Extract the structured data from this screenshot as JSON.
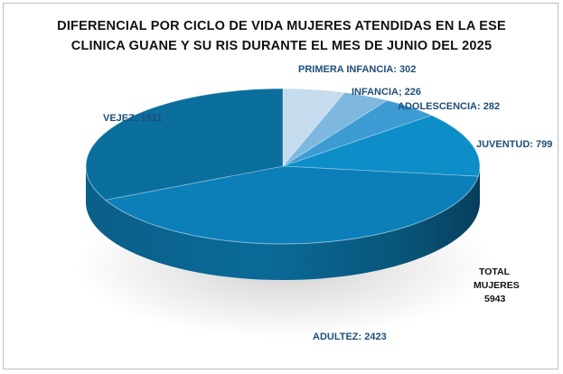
{
  "chart_data": {
    "type": "pie",
    "title_lines": [
      "DIFERENCIAL POR CICLO DE VIDA MUJERES ATENDIDAS EN LA ESE",
      "CLINICA  GUANE Y SU RIS DURANTE EL MES DE JUNIO  DEL  2025"
    ],
    "slices": [
      {
        "label": "PRIMERA INFANCIA",
        "value": 302,
        "text": "PRIMERA INFANCIA: 302",
        "color": "#c5dcee"
      },
      {
        "label": "INFANCIA",
        "value": 226,
        "text": "INFANCIA; 226",
        "color": "#7fb8df"
      },
      {
        "label": "ADOLESCENCIA",
        "value": 282,
        "text": "ADOLESCENCIA: 282",
        "color": "#3d9bd3"
      },
      {
        "label": "JUVENTUD",
        "value": 799,
        "text": "JUVENTUD: 799",
        "color": "#0d8ec9"
      },
      {
        "label": "ADULTEZ",
        "value": 2423,
        "text": "ADULTEZ: 2423",
        "color": "#0c7fb8"
      },
      {
        "label": "VEJEZ",
        "value": 1911,
        "text": "VEJEZ: 1911",
        "color": "#0b6f9e"
      }
    ],
    "total_lines": [
      "TOTAL",
      "MUJERES",
      "5943"
    ]
  }
}
